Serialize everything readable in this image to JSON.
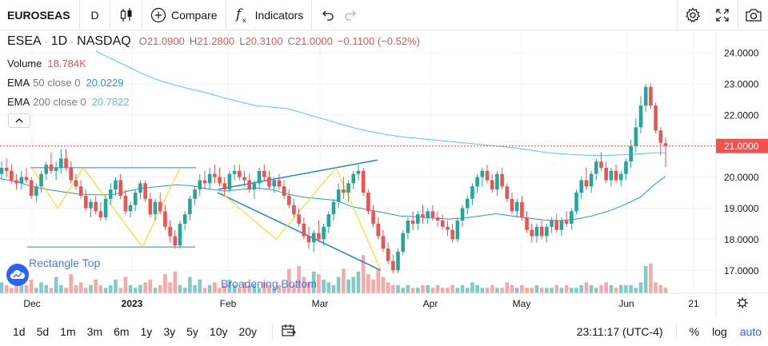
{
  "toolbar": {
    "symbol": "EUROSEAS",
    "interval": "D",
    "compare_label": "Compare",
    "indicators_label": "Indicators"
  },
  "legend": {
    "ticker": "ESEA",
    "interval": "1D",
    "exchange": "NASDAQ",
    "o_label": "O",
    "o_val": "21.0900",
    "h_label": "H",
    "h_val": "21.2800",
    "l_label": "L",
    "l_val": "20.3100",
    "c_label": "C",
    "c_val": "21.0000",
    "change": "−0.1100 (−0.52%)",
    "volume_label": "Volume",
    "volume_val": "18.784K",
    "ema50_label": "EMA",
    "ema50_params": "50 close 0",
    "ema50_val": "20.0229",
    "ema200_label": "EMA",
    "ema200_params": "200 close 0",
    "ema200_val": "20.7822"
  },
  "patterns": {
    "rectangle_top": "Rectangle Top",
    "broadening_bottom": "Broadening Bottom"
  },
  "price_axis": {
    "labels": [
      "24.0000",
      "23.0000",
      "22.0000",
      "21.0000",
      "20.0000",
      "19.0000",
      "18.0000",
      "17.0000"
    ],
    "current_price": "21.0000"
  },
  "time_axis": {
    "labels": [
      "Dec",
      "2023",
      "Feb",
      "Mar",
      "Apr",
      "May",
      "Jun",
      "21"
    ]
  },
  "bottom": {
    "ranges": [
      "1d",
      "5d",
      "1m",
      "3m",
      "6m",
      "1y",
      "3y",
      "5y",
      "10y",
      "20y"
    ],
    "time": "23:11:17 (UTC-4)",
    "percent": "%",
    "log": "log",
    "auto": "auto"
  },
  "colors": {
    "up": "#26a69a",
    "down": "#ef5350",
    "ema50": "#2196f3",
    "ema200": "#4dd0e1",
    "accent": "#2962ff"
  },
  "chart_data": {
    "type": "candlestick",
    "symbol": "ESEA",
    "interval": "1D",
    "ylim": [
      16.4,
      24.4
    ],
    "x_ticks": [
      "Dec",
      "2023",
      "Feb",
      "Mar",
      "Apr",
      "May",
      "Jun",
      "21"
    ],
    "y_ticks": [
      17,
      18,
      19,
      20,
      21,
      22,
      23,
      24
    ],
    "last_bar": {
      "open": 21.09,
      "high": 21.28,
      "low": 20.31,
      "close": 21.0,
      "volume": "18.784K"
    },
    "ohlc": [
      [
        20.1,
        20.5,
        19.9,
        20.3
      ],
      [
        20.3,
        20.6,
        20.0,
        20.2
      ],
      [
        20.2,
        20.4,
        19.8,
        19.9
      ],
      [
        19.9,
        20.1,
        19.6,
        19.8
      ],
      [
        19.8,
        20.2,
        19.6,
        20.0
      ],
      [
        20.0,
        20.3,
        19.8,
        19.9
      ],
      [
        19.9,
        20.0,
        19.3,
        19.4
      ],
      [
        19.4,
        19.8,
        19.2,
        19.7
      ],
      [
        19.7,
        20.2,
        19.5,
        20.1
      ],
      [
        20.1,
        20.5,
        19.9,
        20.4
      ],
      [
        20.4,
        20.8,
        20.1,
        20.2
      ],
      [
        20.2,
        20.5,
        19.9,
        20.3
      ],
      [
        20.3,
        20.9,
        20.1,
        20.6
      ],
      [
        20.6,
        20.9,
        20.2,
        20.3
      ],
      [
        20.3,
        20.5,
        19.8,
        19.9
      ],
      [
        19.9,
        20.1,
        19.6,
        19.7
      ],
      [
        19.7,
        19.9,
        19.3,
        19.4
      ],
      [
        19.4,
        19.6,
        18.9,
        19.0
      ],
      [
        19.0,
        19.3,
        18.7,
        19.2
      ],
      [
        19.2,
        19.4,
        18.8,
        18.9
      ],
      [
        18.9,
        19.2,
        18.6,
        18.7
      ],
      [
        18.7,
        19.4,
        18.6,
        19.3
      ],
      [
        19.3,
        19.8,
        19.1,
        19.6
      ],
      [
        19.6,
        20.0,
        19.4,
        19.9
      ],
      [
        19.9,
        20.1,
        19.3,
        19.4
      ],
      [
        19.4,
        19.6,
        18.8,
        18.9
      ],
      [
        18.9,
        19.2,
        18.7,
        19.1
      ],
      [
        19.1,
        19.6,
        18.9,
        19.5
      ],
      [
        19.5,
        19.9,
        19.3,
        19.8
      ],
      [
        19.8,
        19.9,
        19.2,
        19.3
      ],
      [
        19.3,
        19.5,
        18.7,
        18.8
      ],
      [
        18.8,
        19.3,
        18.6,
        19.2
      ],
      [
        19.2,
        19.5,
        18.8,
        18.9
      ],
      [
        18.9,
        19.1,
        18.3,
        18.4
      ],
      [
        18.4,
        18.6,
        17.9,
        18.1
      ],
      [
        18.1,
        18.3,
        17.7,
        17.8
      ],
      [
        17.8,
        18.6,
        17.7,
        18.5
      ],
      [
        18.5,
        18.9,
        18.3,
        18.8
      ],
      [
        18.8,
        19.4,
        18.6,
        19.3
      ],
      [
        19.3,
        19.7,
        19.1,
        19.6
      ],
      [
        19.6,
        20.1,
        19.4,
        19.9
      ],
      [
        19.9,
        20.2,
        19.6,
        19.8
      ],
      [
        19.8,
        20.3,
        19.6,
        20.1
      ],
      [
        20.1,
        20.4,
        19.8,
        20.0
      ],
      [
        20.0,
        20.3,
        19.7,
        19.8
      ],
      [
        19.8,
        20.0,
        19.4,
        19.6
      ],
      [
        19.6,
        20.2,
        19.5,
        20.1
      ],
      [
        20.1,
        20.4,
        19.9,
        20.2
      ],
      [
        20.2,
        20.4,
        19.9,
        20.0
      ],
      [
        20.0,
        20.2,
        19.7,
        19.9
      ],
      [
        19.9,
        20.1,
        19.5,
        19.6
      ],
      [
        19.6,
        19.9,
        19.3,
        19.8
      ],
      [
        19.8,
        20.3,
        19.6,
        20.2
      ],
      [
        20.2,
        20.4,
        19.9,
        20.0
      ],
      [
        20.0,
        20.2,
        19.6,
        19.7
      ],
      [
        19.7,
        20.0,
        19.5,
        19.9
      ],
      [
        19.9,
        20.1,
        19.6,
        19.7
      ],
      [
        19.7,
        19.9,
        19.3,
        19.4
      ],
      [
        19.4,
        19.6,
        19.0,
        19.1
      ],
      [
        19.1,
        19.3,
        18.7,
        18.8
      ],
      [
        18.8,
        19.0,
        18.4,
        18.5
      ],
      [
        18.5,
        18.7,
        18.0,
        18.1
      ],
      [
        18.1,
        18.4,
        17.7,
        17.9
      ],
      [
        17.9,
        18.3,
        17.6,
        18.2
      ],
      [
        18.2,
        18.6,
        17.9,
        18.0
      ],
      [
        18.0,
        18.5,
        17.8,
        18.4
      ],
      [
        18.4,
        18.9,
        18.2,
        18.8
      ],
      [
        18.8,
        19.3,
        18.6,
        19.2
      ],
      [
        19.2,
        19.8,
        19.0,
        19.6
      ],
      [
        19.6,
        20.0,
        19.3,
        19.5
      ],
      [
        19.5,
        19.9,
        19.2,
        19.8
      ],
      [
        19.8,
        20.2,
        19.6,
        20.1
      ],
      [
        20.1,
        20.4,
        19.9,
        20.2
      ],
      [
        20.2,
        20.3,
        19.4,
        19.5
      ],
      [
        19.5,
        19.6,
        18.8,
        18.9
      ],
      [
        18.9,
        19.1,
        18.4,
        18.5
      ],
      [
        18.5,
        18.7,
        18.0,
        18.1
      ],
      [
        18.1,
        18.3,
        17.6,
        17.7
      ],
      [
        17.7,
        17.9,
        17.2,
        17.3
      ],
      [
        17.3,
        17.5,
        16.9,
        17.0
      ],
      [
        17.0,
        17.7,
        16.9,
        17.6
      ],
      [
        17.6,
        18.3,
        17.5,
        18.2
      ],
      [
        18.2,
        18.7,
        18.0,
        18.6
      ],
      [
        18.6,
        18.9,
        18.3,
        18.5
      ],
      [
        18.5,
        18.9,
        18.3,
        18.8
      ],
      [
        18.8,
        19.1,
        18.5,
        18.7
      ],
      [
        18.7,
        19.0,
        18.5,
        18.9
      ],
      [
        18.9,
        19.1,
        18.6,
        18.7
      ],
      [
        18.7,
        18.9,
        18.4,
        18.6
      ],
      [
        18.6,
        18.8,
        18.3,
        18.4
      ],
      [
        18.4,
        18.6,
        18.1,
        18.3
      ],
      [
        18.3,
        18.5,
        17.9,
        18.0
      ],
      [
        18.0,
        18.7,
        17.9,
        18.6
      ],
      [
        18.6,
        19.1,
        18.4,
        19.0
      ],
      [
        19.0,
        19.4,
        18.8,
        19.3
      ],
      [
        19.3,
        19.8,
        19.1,
        19.7
      ],
      [
        19.7,
        20.1,
        19.5,
        20.0
      ],
      [
        20.0,
        20.3,
        19.7,
        20.2
      ],
      [
        20.2,
        20.4,
        19.8,
        19.9
      ],
      [
        19.9,
        20.1,
        19.5,
        19.6
      ],
      [
        19.6,
        20.2,
        19.4,
        20.1
      ],
      [
        20.1,
        20.3,
        19.6,
        19.7
      ],
      [
        19.7,
        19.8,
        19.2,
        19.3
      ],
      [
        19.3,
        19.5,
        18.8,
        18.9
      ],
      [
        18.9,
        19.3,
        18.7,
        19.2
      ],
      [
        19.2,
        19.4,
        18.6,
        18.7
      ],
      [
        18.7,
        18.9,
        18.2,
        18.3
      ],
      [
        18.3,
        18.5,
        17.9,
        18.1
      ],
      [
        18.1,
        18.5,
        17.9,
        18.4
      ],
      [
        18.4,
        18.6,
        18.0,
        18.1
      ],
      [
        18.1,
        18.5,
        17.9,
        18.4
      ],
      [
        18.4,
        18.7,
        18.2,
        18.6
      ],
      [
        18.6,
        18.8,
        18.2,
        18.3
      ],
      [
        18.3,
        18.7,
        18.1,
        18.6
      ],
      [
        18.6,
        18.9,
        18.4,
        18.5
      ],
      [
        18.5,
        19.0,
        18.3,
        18.9
      ],
      [
        18.9,
        19.6,
        18.8,
        19.5
      ],
      [
        19.5,
        20.0,
        19.3,
        19.9
      ],
      [
        19.9,
        20.3,
        19.6,
        19.7
      ],
      [
        19.7,
        20.2,
        19.5,
        20.1
      ],
      [
        20.1,
        20.6,
        19.9,
        20.5
      ],
      [
        20.5,
        20.8,
        20.2,
        20.3
      ],
      [
        20.3,
        20.5,
        19.8,
        19.9
      ],
      [
        19.9,
        20.3,
        19.7,
        20.2
      ],
      [
        20.2,
        20.4,
        19.8,
        19.9
      ],
      [
        19.9,
        20.2,
        19.7,
        20.1
      ],
      [
        20.1,
        20.6,
        19.9,
        20.5
      ],
      [
        20.5,
        21.2,
        20.3,
        21.0
      ],
      [
        21.0,
        21.9,
        20.8,
        21.6
      ],
      [
        21.6,
        22.6,
        21.4,
        22.3
      ],
      [
        22.3,
        23.0,
        22.1,
        22.9
      ],
      [
        22.9,
        23.0,
        22.2,
        22.3
      ],
      [
        22.3,
        22.4,
        21.4,
        21.5
      ],
      [
        21.5,
        21.6,
        20.7,
        21.1
      ],
      [
        21.09,
        21.28,
        20.31,
        21.0
      ]
    ],
    "volume": [
      4,
      3,
      2,
      9,
      3,
      3,
      5,
      2,
      4,
      3,
      2,
      6,
      3,
      2,
      7,
      3,
      4,
      2,
      3,
      5,
      3,
      2,
      3,
      5,
      2,
      6,
      3,
      2,
      3,
      4,
      5,
      2,
      3,
      7,
      4,
      8,
      3,
      2,
      6,
      3,
      5,
      2,
      3,
      4,
      2,
      3,
      5,
      3,
      2,
      4,
      3,
      3,
      2,
      4,
      3,
      2,
      3,
      2,
      9,
      3,
      10,
      6,
      4,
      8,
      7,
      5,
      4,
      3,
      6,
      9,
      5,
      6,
      8,
      14,
      7,
      5,
      9,
      6,
      4,
      3,
      3,
      2,
      3,
      2,
      2,
      3,
      3,
      2,
      3,
      2,
      2,
      3,
      2,
      3,
      2,
      4,
      3,
      2,
      2,
      3,
      2,
      2,
      4,
      3,
      2,
      3,
      2,
      2,
      3,
      2,
      2,
      2,
      3,
      2,
      3,
      2,
      2,
      3,
      4,
      3,
      2,
      3,
      4,
      3,
      2,
      3,
      3,
      3,
      2,
      4,
      10,
      11,
      4,
      3,
      2
    ],
    "ema50": [
      [
        0,
        19.95
      ],
      [
        20,
        19.85
      ],
      [
        40,
        19.7
      ],
      [
        60,
        19.6
      ],
      [
        80,
        19.52
      ],
      [
        100,
        19.45
      ],
      [
        120,
        19.43
      ],
      [
        140,
        19.43
      ],
      [
        160,
        19.55
      ],
      [
        180,
        19.65
      ],
      [
        200,
        19.7
      ],
      [
        220,
        19.75
      ],
      [
        240,
        19.72
      ],
      [
        260,
        19.62
      ],
      [
        280,
        19.55
      ],
      [
        300,
        19.6
      ],
      [
        320,
        19.65
      ],
      [
        340,
        19.6
      ],
      [
        360,
        19.45
      ],
      [
        380,
        19.35
      ],
      [
        400,
        19.3
      ],
      [
        420,
        19.25
      ],
      [
        440,
        19.05
      ],
      [
        460,
        18.95
      ],
      [
        480,
        18.85
      ],
      [
        500,
        18.75
      ],
      [
        520,
        18.72
      ],
      [
        540,
        18.68
      ],
      [
        560,
        18.65
      ],
      [
        580,
        18.68
      ],
      [
        600,
        18.75
      ],
      [
        620,
        18.82
      ],
      [
        640,
        18.75
      ],
      [
        660,
        18.68
      ],
      [
        680,
        18.62
      ],
      [
        700,
        18.6
      ],
      [
        720,
        18.65
      ],
      [
        740,
        18.75
      ],
      [
        760,
        18.9
      ],
      [
        780,
        19.1
      ],
      [
        800,
        19.35
      ],
      [
        820,
        19.8
      ],
      [
        832,
        20.02
      ]
    ],
    "ema200": [
      [
        120,
        24.05
      ],
      [
        140,
        23.8
      ],
      [
        160,
        23.55
      ],
      [
        180,
        23.3
      ],
      [
        200,
        23.1
      ],
      [
        220,
        22.95
      ],
      [
        240,
        22.82
      ],
      [
        260,
        22.7
      ],
      [
        280,
        22.55
      ],
      [
        300,
        22.42
      ],
      [
        320,
        22.3
      ],
      [
        340,
        22.25
      ],
      [
        360,
        22.2
      ],
      [
        380,
        22.05
      ],
      [
        400,
        21.9
      ],
      [
        420,
        21.75
      ],
      [
        440,
        21.6
      ],
      [
        460,
        21.48
      ],
      [
        480,
        21.38
      ],
      [
        500,
        21.3
      ],
      [
        520,
        21.25
      ],
      [
        540,
        21.2
      ],
      [
        560,
        21.15
      ],
      [
        580,
        21.1
      ],
      [
        600,
        21.05
      ],
      [
        620,
        21.0
      ],
      [
        640,
        20.95
      ],
      [
        660,
        20.88
      ],
      [
        680,
        20.8
      ],
      [
        700,
        20.75
      ],
      [
        720,
        20.72
      ],
      [
        740,
        20.7
      ],
      [
        760,
        20.7
      ],
      [
        780,
        20.72
      ],
      [
        800,
        20.75
      ],
      [
        820,
        20.78
      ],
      [
        832,
        20.78
      ]
    ]
  }
}
